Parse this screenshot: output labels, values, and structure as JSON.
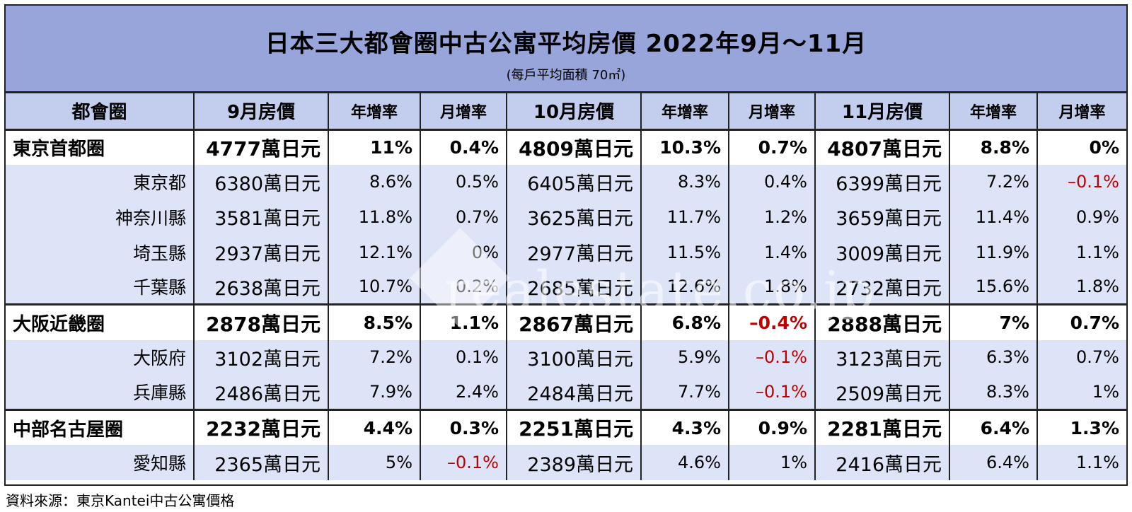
{
  "chart_data": {
    "type": "table",
    "title": "日本三大都會圈中古公寓平均房價 2022年9月～11月",
    "subtitle": "(每戶平均面積 70㎡)",
    "columns": [
      "都會圈",
      "9月房價",
      "年增率",
      "月增率",
      "10月房價",
      "年增率",
      "月增率",
      "11月房價",
      "年增率",
      "月增率"
    ],
    "rows": [
      {
        "name": "東京首都圈",
        "level": "region",
        "cells": [
          "4777萬日元",
          "11%",
          "0.4%",
          "4809萬日元",
          "10.3%",
          "0.7%",
          "4807萬日元",
          "8.8%",
          "0%"
        ]
      },
      {
        "name": "東京都",
        "level": "sub",
        "cells": [
          "6380萬日元",
          "8.6%",
          "0.5%",
          "6405萬日元",
          "8.3%",
          "0.4%",
          "6399萬日元",
          "7.2%",
          "–0.1%"
        ]
      },
      {
        "name": "神奈川縣",
        "level": "sub",
        "cells": [
          "3581萬日元",
          "11.8%",
          "0.7%",
          "3625萬日元",
          "11.7%",
          "1.2%",
          "3659萬日元",
          "11.4%",
          "0.9%"
        ]
      },
      {
        "name": "埼玉縣",
        "level": "sub",
        "cells": [
          "2937萬日元",
          "12.1%",
          "0%",
          "2977萬日元",
          "11.5%",
          "1.4%",
          "3009萬日元",
          "11.9%",
          "1.1%"
        ]
      },
      {
        "name": "千葉縣",
        "level": "sub",
        "cells": [
          "2638萬日元",
          "10.7%",
          "0.2%",
          "2685萬日元",
          "12.6%",
          "1.8%",
          "2732萬日元",
          "15.6%",
          "1.8%"
        ]
      },
      {
        "name": "大阪近畿圈",
        "level": "region",
        "cells": [
          "2878萬日元",
          "8.5%",
          "1.1%",
          "2867萬日元",
          "6.8%",
          "–0.4%",
          "2888萬日元",
          "7%",
          "0.7%"
        ]
      },
      {
        "name": "大阪府",
        "level": "sub",
        "cells": [
          "3102萬日元",
          "7.2%",
          "0.1%",
          "3100萬日元",
          "5.9%",
          "–0.1%",
          "3123萬日元",
          "6.3%",
          "0.7%"
        ]
      },
      {
        "name": "兵庫縣",
        "level": "sub",
        "cells": [
          "2486萬日元",
          "7.9%",
          "2.4%",
          "2484萬日元",
          "7.7%",
          "–0.1%",
          "2509萬日元",
          "8.3%",
          "1%"
        ]
      },
      {
        "name": "中部名古屋圈",
        "level": "region",
        "cells": [
          "2232萬日元",
          "4.4%",
          "0.3%",
          "2251萬日元",
          "4.3%",
          "0.9%",
          "2281萬日元",
          "6.4%",
          "1.3%"
        ]
      },
      {
        "name": "愛知縣",
        "level": "sub",
        "cells": [
          "2365萬日元",
          "5%",
          "–0.1%",
          "2389萬日元",
          "4.6%",
          "1%",
          "2416萬日元",
          "6.4%",
          "1.1%"
        ]
      }
    ],
    "colors": {
      "title_bg": "#97a5da",
      "header_bg": "#c3cdee",
      "sub_row_bg": "#dee4f7",
      "negative": "#c00000"
    }
  },
  "watermark": "realestate.co.jp",
  "source": "資料來源：東京Kantei中古公寓價格"
}
